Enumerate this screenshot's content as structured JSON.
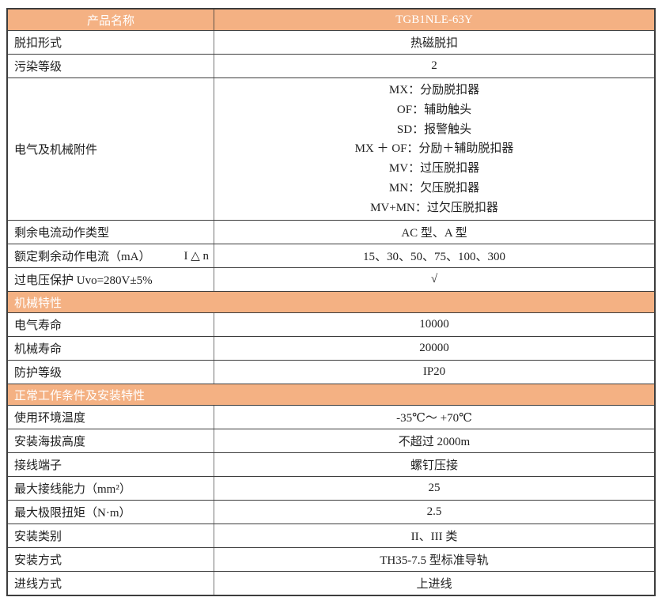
{
  "colors": {
    "accent_orange": "#f4b183",
    "header_text": "#ffffff",
    "grid_border": "#3d3d3d",
    "column_divider": "#757575",
    "body_text": "#1f1f1f"
  },
  "title_row": {
    "name_label": "产品名称",
    "model_value": "TGB1NLE-63Y"
  },
  "general": {
    "rows": [
      {
        "label": "脱扣形式",
        "value": "热磁脱扣"
      },
      {
        "label": "污染等级",
        "value": "2"
      },
      {
        "label": "电气及机械附件",
        "lines": [
          "MX：分励脱扣器",
          "OF：辅助触头",
          "SD：报警触头",
          "MX ＋ OF：分励＋辅助脱扣器",
          "MV：过压脱扣器",
          "MN：欠压脱扣器",
          "MV+MN：过欠压脱扣器"
        ]
      },
      {
        "label": "剩余电流动作类型",
        "value": "AC 型、A 型"
      },
      {
        "label": "额定剩余动作电流（mA）",
        "label_suffix": "I △ n",
        "value": "15、30、50、75、100、300"
      },
      {
        "label": "过电压保护 Uvo=280V±5%",
        "value": "√"
      }
    ]
  },
  "mechanical": {
    "title": "机械特性",
    "rows": [
      {
        "label": "电气寿命",
        "value": "10000"
      },
      {
        "label": "机械寿命",
        "value": "20000"
      },
      {
        "label": "防护等级",
        "value": "IP20"
      }
    ]
  },
  "installation": {
    "title": "正常工作条件及安装特性",
    "rows": [
      {
        "label": "使用环境温度",
        "value": "-35℃～ +70℃"
      },
      {
        "label": "安装海拔高度",
        "value": "不超过 2000m"
      },
      {
        "label": "接线端子",
        "value": "螺钉压接"
      },
      {
        "label": "最大接线能力（mm²）",
        "value": "25"
      },
      {
        "label": "最大极限扭矩（N·m）",
        "value": "2.5"
      },
      {
        "label": "安装类别",
        "value": "II、III 类"
      },
      {
        "label": "安装方式",
        "value": "TH35-7.5 型标准导轨"
      },
      {
        "label": "进线方式",
        "value": "上进线"
      }
    ]
  }
}
